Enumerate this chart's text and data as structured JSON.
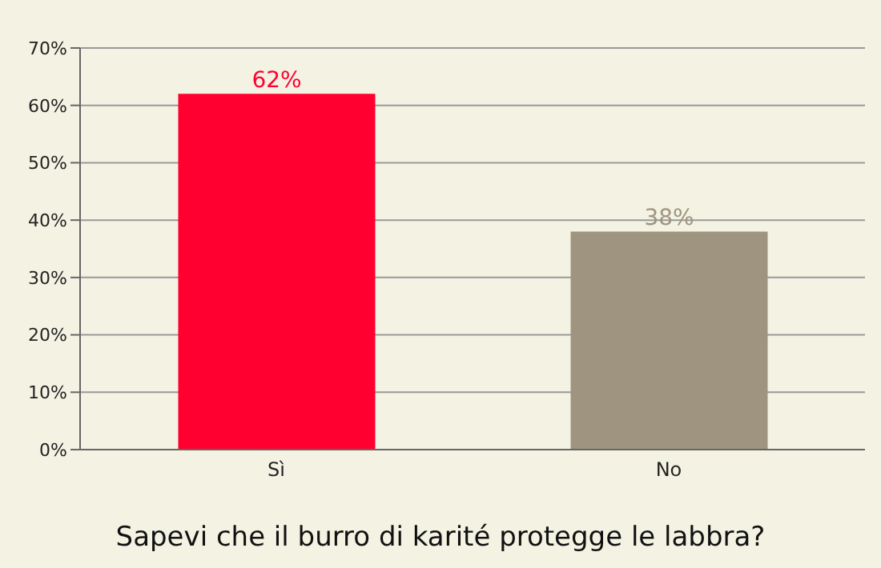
{
  "chart_data": {
    "type": "bar",
    "title": "Sapevi che il burro di karité protegge le labbra?",
    "categories": [
      "Sì",
      "No"
    ],
    "values": [
      62,
      38
    ],
    "colors": [
      "#ff0030",
      "#9e9480"
    ],
    "value_labels": [
      "62%",
      "38%"
    ],
    "ylim": [
      0,
      70
    ],
    "yticks": [
      {
        "value": 0,
        "label": "0%"
      },
      {
        "value": 10,
        "label": "10%"
      },
      {
        "value": 20,
        "label": "20%"
      },
      {
        "value": 30,
        "label": "30%"
      },
      {
        "value": 40,
        "label": "40%"
      },
      {
        "value": 50,
        "label": "50%"
      },
      {
        "value": 60,
        "label": "60%"
      },
      {
        "value": 70,
        "label": "70%"
      }
    ],
    "grid": "y",
    "legend": false
  }
}
